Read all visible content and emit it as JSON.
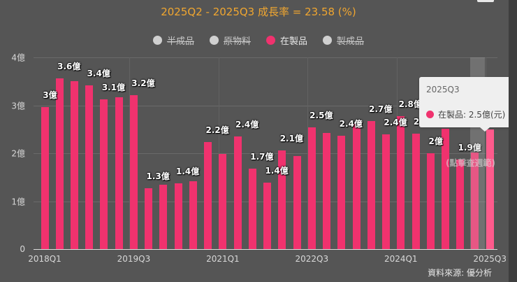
{
  "header": {
    "title": "2025Q2 - 2025Q3 成長率 = 23.58 (%)"
  },
  "legend": [
    {
      "label": "半成品",
      "active": false
    },
    {
      "label": "原物料",
      "active": false
    },
    {
      "label": "在製品",
      "active": true
    },
    {
      "label": "製成品",
      "active": false
    }
  ],
  "colors": {
    "background": "#555555",
    "bar": "#f0326e",
    "title": "#f0a630",
    "inactive_legend": "#d0d0d0"
  },
  "yaxis": {
    "ticks": [
      "0",
      "1億",
      "2億",
      "3億",
      "4億"
    ]
  },
  "xaxis": {
    "ticks": [
      "2018Q1",
      "2019Q3",
      "2021Q1",
      "2022Q3",
      "2024Q1",
      "2025Q3"
    ]
  },
  "tooltip": {
    "title": "2025Q3",
    "series": "在製品",
    "value_text": "在製品: 2.5億(元)"
  },
  "hint": "(點擊查週範)",
  "source": "資料來源: 優分析",
  "chart_data": {
    "type": "bar",
    "title": "2025Q2 - 2025Q3 成長率 = 23.58 (%)",
    "xlabel": "",
    "ylabel": "",
    "unit": "億(元)",
    "ylim": [
      0,
      4
    ],
    "grid": true,
    "legend_position": "top",
    "series": [
      {
        "name": "在製品",
        "values": [
          2.97,
          3.56,
          3.5,
          3.42,
          3.12,
          3.17,
          3.21,
          1.27,
          1.34,
          1.37,
          1.42,
          2.23,
          1.99,
          2.35,
          1.68,
          1.39,
          2.06,
          1.94,
          2.54,
          2.42,
          2.37,
          2.61,
          2.67,
          2.39,
          2.77,
          2.41,
          2.0,
          2.51,
          1.87,
          2.02,
          2.5
        ]
      }
    ],
    "categories": [
      "2018Q1",
      "2018Q2",
      "2018Q3",
      "2018Q4",
      "2019Q1",
      "2019Q2",
      "2019Q3",
      "2019Q4",
      "2020Q1",
      "2020Q2",
      "2020Q3",
      "2020Q4",
      "2021Q1",
      "2021Q2",
      "2021Q3",
      "2021Q4",
      "2022Q1",
      "2022Q2",
      "2022Q3",
      "2022Q4",
      "2023Q1",
      "2023Q2",
      "2023Q3",
      "2023Q4",
      "2024Q1",
      "2024Q2",
      "2024Q3",
      "2024Q4",
      "2025Q1",
      "2025Q2",
      "2025Q3"
    ],
    "data_labels": [
      {
        "index": 0,
        "text": "3億"
      },
      {
        "index": 1,
        "text": "3.6億"
      },
      {
        "index": 3,
        "text": "3.4億"
      },
      {
        "index": 4,
        "text": "3.1億"
      },
      {
        "index": 6,
        "text": "3.2億"
      },
      {
        "index": 7,
        "text": "1.3億"
      },
      {
        "index": 9,
        "text": "1.4億"
      },
      {
        "index": 11,
        "text": "2.2億"
      },
      {
        "index": 13,
        "text": "2.4億"
      },
      {
        "index": 14,
        "text": "1.7億"
      },
      {
        "index": 15,
        "text": "1.4億"
      },
      {
        "index": 16,
        "text": "2.1億"
      },
      {
        "index": 18,
        "text": "2.5億"
      },
      {
        "index": 20,
        "text": "2.4億"
      },
      {
        "index": 22,
        "text": "2.7億"
      },
      {
        "index": 23,
        "text": "2.4億"
      },
      {
        "index": 24,
        "text": "2.8億"
      },
      {
        "index": 25,
        "text": "2.4億"
      },
      {
        "index": 26,
        "text": "2億"
      },
      {
        "index": 28,
        "text": "1.9億"
      }
    ],
    "legend": [
      "半成品",
      "原物料",
      "在製品",
      "製成品"
    ]
  }
}
